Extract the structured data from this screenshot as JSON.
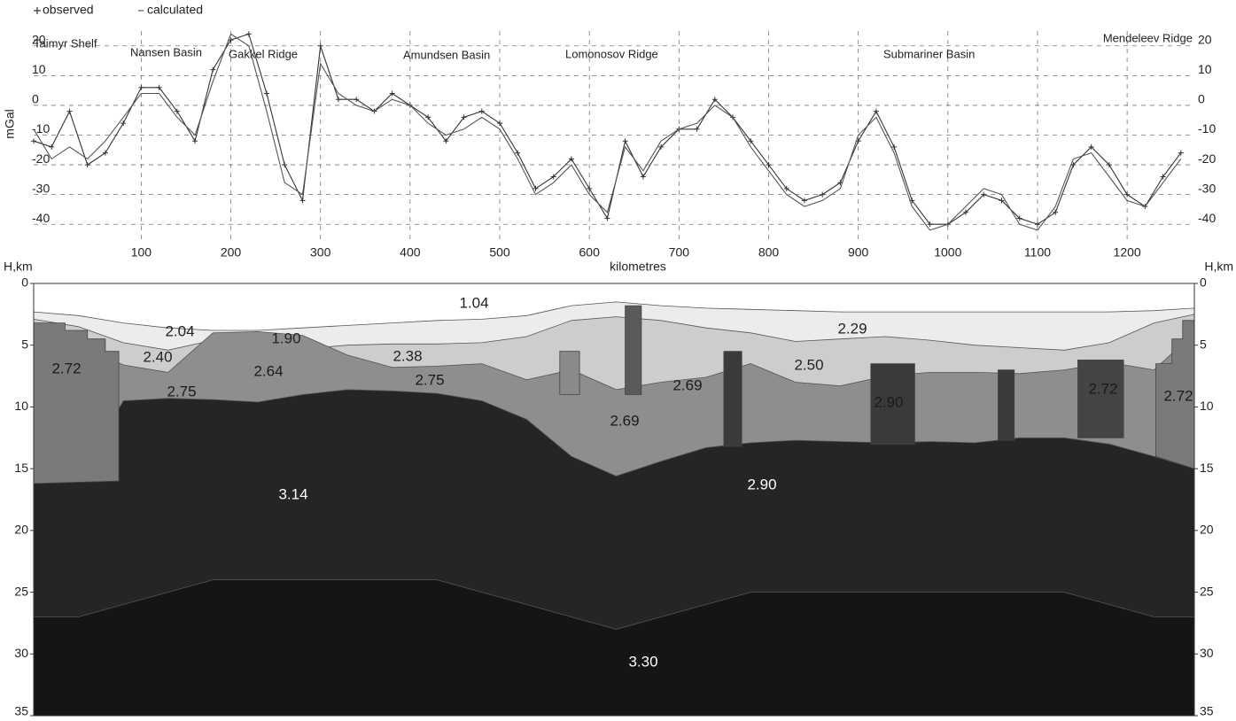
{
  "chart_data": [
    {
      "type": "line",
      "ylabel": "mGal",
      "xlabel": "kilometres",
      "annotations": [
        "Taimyr Shelf",
        "Nansen Basin",
        "Gakkel Ridge",
        "Amundsen Basin",
        "Lomonosov Ridge",
        "Submariner Basin",
        "Mendeleev Ridge"
      ],
      "x": [
        -20,
        0,
        20,
        40,
        60,
        80,
        100,
        120,
        140,
        160,
        180,
        200,
        220,
        240,
        260,
        280,
        300,
        320,
        340,
        360,
        380,
        400,
        420,
        440,
        460,
        480,
        500,
        520,
        540,
        560,
        580,
        600,
        620,
        640,
        660,
        680,
        700,
        720,
        740,
        760,
        780,
        800,
        820,
        840,
        860,
        880,
        900,
        920,
        940,
        960,
        980,
        1000,
        1020,
        1040,
        1060,
        1080,
        1100,
        1120,
        1140,
        1160,
        1180,
        1200,
        1220,
        1240,
        1260
      ],
      "series": [
        {
          "name": "observed",
          "color": "#333333",
          "marker": "plus",
          "values": [
            -12,
            -14,
            -2,
            -20,
            -16,
            -6,
            6,
            6,
            -2,
            -12,
            12,
            22,
            24,
            4,
            -20,
            -32,
            20,
            2,
            2,
            -2,
            4,
            0,
            -4,
            -12,
            -4,
            -2,
            -6,
            -16,
            -28,
            -24,
            -18,
            -28,
            -38,
            -12,
            -24,
            -14,
            -8,
            -8,
            2,
            -4,
            -12,
            -20,
            -28,
            -32,
            -30,
            -26,
            -12,
            -2,
            -14,
            -32,
            -40,
            -40,
            -36,
            -30,
            -32,
            -38,
            -40,
            -36,
            -20,
            -14,
            -20,
            -30,
            -34,
            -24,
            -16
          ]
        },
        {
          "name": "calculated",
          "color": "#555555",
          "marker": "dash",
          "values": [
            -8,
            -18,
            -14,
            -18,
            -12,
            -4,
            4,
            4,
            -4,
            -10,
            8,
            24,
            20,
            -2,
            -26,
            -30,
            14,
            4,
            0,
            -2,
            2,
            0,
            -6,
            -10,
            -8,
            -4,
            -8,
            -18,
            -30,
            -26,
            -20,
            -30,
            -36,
            -14,
            -22,
            -12,
            -8,
            -6,
            0,
            -4,
            -14,
            -22,
            -30,
            -34,
            -32,
            -28,
            -10,
            -4,
            -16,
            -34,
            -42,
            -40,
            -34,
            -28,
            -30,
            -40,
            -42,
            -34,
            -18,
            -16,
            -24,
            -32,
            -34,
            -26,
            -18
          ]
        }
      ],
      "xlim": [
        -20,
        1275
      ],
      "xticks": [
        100,
        200,
        300,
        400,
        500,
        600,
        700,
        800,
        900,
        1000,
        1100,
        1200
      ],
      "ylim": [
        -45,
        25
      ],
      "yticks": [
        20,
        10,
        0,
        -10,
        -20,
        -30,
        -40
      ],
      "grid": true
    },
    {
      "type": "section",
      "ylabel": "H,km",
      "invert_y": true,
      "xlim": [
        -20,
        1275
      ],
      "ylim": [
        0,
        35
      ],
      "yticks": [
        0,
        5,
        10,
        15,
        20,
        25,
        30,
        35
      ],
      "x": [
        -20,
        30,
        80,
        130,
        180,
        230,
        280,
        330,
        380,
        430,
        480,
        530,
        580,
        630,
        680,
        730,
        780,
        830,
        880,
        930,
        980,
        1030,
        1080,
        1130,
        1180,
        1230,
        1275
      ],
      "layers": [
        {
          "labels": [
            "1.04"
          ],
          "color": "#ffffff"
        },
        {
          "labels": [
            "2.04",
            "1.90",
            "2.29"
          ],
          "color": "#ececec",
          "top": [
            2.3,
            2.6,
            3.2,
            3.6,
            3.8,
            3.8,
            3.6,
            3.4,
            3.2,
            3.0,
            2.9,
            2.6,
            1.8,
            1.5,
            1.8,
            2.0,
            2.1,
            2.2,
            2.3,
            2.3,
            2.3,
            2.3,
            2.3,
            2.3,
            2.3,
            2.2,
            2.0
          ]
        },
        {
          "labels": [
            "2.40",
            "2.38",
            "2.50"
          ],
          "color": "#cdcdcd",
          "top": [
            2.9,
            3.5,
            4.8,
            5.4,
            4.6,
            4.8,
            5.3,
            5.0,
            4.9,
            4.9,
            4.8,
            4.3,
            3.0,
            2.7,
            3.0,
            3.6,
            4.0,
            4.7,
            4.5,
            4.3,
            4.6,
            5.0,
            5.2,
            5.4,
            4.8,
            3.2,
            2.5
          ]
        },
        {
          "labels": [
            "2.75",
            "2.64",
            "2.75",
            "2.69",
            "2.69"
          ],
          "color": "#8e8e8e",
          "top": [
            3.5,
            5.0,
            6.6,
            7.2,
            4.0,
            3.9,
            4.2,
            5.8,
            6.8,
            6.7,
            6.5,
            7.8,
            7.0,
            8.6,
            8.0,
            7.6,
            6.5,
            8.0,
            8.3,
            7.5,
            7.2,
            7.2,
            7.3,
            7.0,
            6.4,
            7.0,
            4.0
          ]
        },
        {
          "labels": [
            "3.14",
            "2.90"
          ],
          "color": "#252525",
          "top": [
            16.2,
            15.8,
            9.5,
            9.3,
            9.4,
            9.6,
            9.0,
            8.6,
            8.7,
            8.9,
            9.5,
            11.0,
            14.0,
            15.6,
            14.4,
            13.3,
            12.9,
            12.7,
            12.8,
            12.9,
            12.8,
            12.9,
            12.5,
            12.5,
            13.0,
            14.0,
            15.0
          ]
        },
        {
          "labels": [
            "3.30"
          ],
          "color": "#151515",
          "top": [
            27,
            27,
            26,
            25,
            24,
            24,
            24,
            24,
            24,
            24,
            25,
            26,
            27,
            28,
            27,
            26,
            25,
            25,
            25,
            25,
            25,
            25,
            25,
            25,
            26,
            27,
            27
          ]
        }
      ],
      "bodies": [
        {
          "density": "2.72",
          "color": "#7a7a7a",
          "x": [
            -20,
            15,
            15,
            40,
            40,
            60,
            60,
            75,
            75,
            -20
          ],
          "depth": [
            3.2,
            3.2,
            3.8,
            3.8,
            4.5,
            4.5,
            5.5,
            5.5,
            16.0,
            16.2
          ]
        },
        {
          "density": "2.72",
          "color": "#7a7a7a",
          "x": [
            1232,
            1250,
            1250,
            1262,
            1262,
            1275,
            1275,
            1232
          ],
          "depth": [
            6.5,
            6.5,
            4.5,
            4.5,
            3.0,
            3.0,
            15.0,
            14.0
          ]
        },
        {
          "color": "#8a8a8a",
          "x": [
            567,
            589,
            589,
            567
          ],
          "depth": [
            5.5,
            5.5,
            9.0,
            9.0
          ]
        },
        {
          "color": "#5a5a5a",
          "x": [
            640,
            658,
            658,
            640
          ],
          "depth": [
            1.8,
            1.8,
            9.0,
            9.0
          ]
        },
        {
          "color": "#3a3a3a",
          "x": [
            750,
            770,
            770,
            750
          ],
          "depth": [
            5.5,
            5.5,
            13.2,
            13.2
          ]
        },
        {
          "density": "2.90",
          "color": "#3a3a3a",
          "x": [
            914,
            963,
            963,
            914
          ],
          "depth": [
            6.5,
            6.5,
            13.0,
            13.0
          ]
        },
        {
          "color": "#3a3a3a",
          "x": [
            1056,
            1074,
            1074,
            1056
          ],
          "depth": [
            7.0,
            7.0,
            12.7,
            12.7
          ]
        },
        {
          "density": "2.72",
          "color": "#444444",
          "x": [
            1145,
            1196,
            1196,
            1145
          ],
          "depth": [
            6.2,
            6.2,
            12.5,
            12.5
          ]
        }
      ]
    }
  ]
}
